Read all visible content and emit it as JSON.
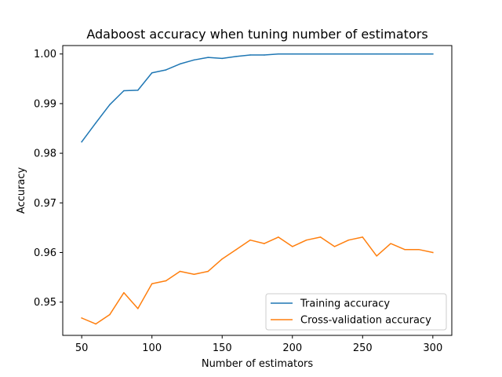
{
  "chart_data": {
    "type": "line",
    "title": "Adaboost accuracy when tuning number of estimators",
    "xlabel": "Number of estimators",
    "ylabel": "Accuracy",
    "xlim": [
      36.5,
      313.5
    ],
    "ylim": [
      0.9433,
      1.0017
    ],
    "x_ticks": [
      50,
      100,
      150,
      200,
      250,
      300
    ],
    "y_ticks": [
      0.95,
      0.96,
      0.97,
      0.98,
      0.99,
      1.0
    ],
    "x_tick_labels": [
      "50",
      "100",
      "150",
      "200",
      "250",
      "300"
    ],
    "y_tick_labels": [
      "0.95",
      "0.96",
      "0.97",
      "0.98",
      "0.99",
      "1.00"
    ],
    "grid": false,
    "legend_position": "lower-right",
    "x": [
      50,
      60,
      70,
      80,
      90,
      100,
      110,
      120,
      130,
      140,
      150,
      160,
      170,
      180,
      190,
      200,
      210,
      220,
      230,
      240,
      250,
      260,
      270,
      280,
      290,
      300
    ],
    "series": [
      {
        "name": "Training accuracy",
        "color": "#1f77b4",
        "values": [
          0.9823,
          0.9861,
          0.9898,
          0.9926,
          0.9927,
          0.9962,
          0.9968,
          0.998,
          0.9988,
          0.9993,
          0.9991,
          0.9995,
          0.9998,
          0.9998,
          1.0,
          1.0,
          1.0,
          1.0,
          1.0,
          1.0,
          1.0,
          1.0,
          1.0,
          1.0,
          1.0,
          1.0
        ]
      },
      {
        "name": "Cross-validation accuracy",
        "color": "#ff7f0e",
        "values": [
          0.9468,
          0.9456,
          0.9475,
          0.9519,
          0.9487,
          0.9537,
          0.9543,
          0.9562,
          0.9556,
          0.9562,
          0.9587,
          0.9606,
          0.9625,
          0.9618,
          0.9631,
          0.9612,
          0.9625,
          0.9631,
          0.9612,
          0.9625,
          0.9631,
          0.9593,
          0.9618,
          0.9606,
          0.9606,
          0.96
        ]
      }
    ]
  }
}
